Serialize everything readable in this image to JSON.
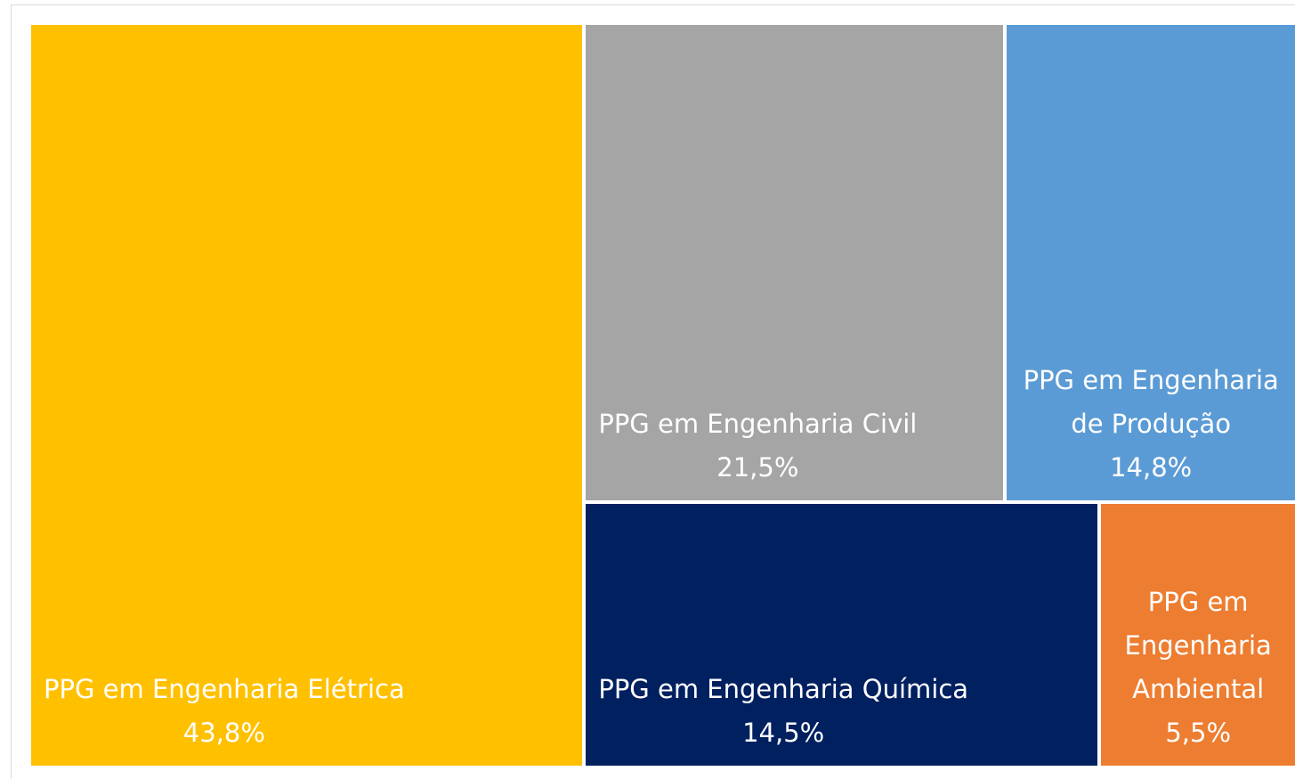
{
  "chart_data": {
    "type": "treemap",
    "categories": [
      "PPG em Engenharia Elétrica",
      "PPG em Engenharia Civil",
      "PPG em Engenharia de Produção",
      "PPG em Engenharia Química",
      "PPG em Engenharia Ambiental"
    ],
    "values": [
      43.8,
      21.5,
      14.8,
      14.5,
      5.5
    ],
    "value_labels": [
      "43,8%",
      "21,5%",
      "14,8%",
      "14,5%",
      "5,5%"
    ],
    "colors": [
      "#ffc000",
      "#a5a5a5",
      "#5b9bd5",
      "#002060",
      "#ed7d31"
    ]
  }
}
